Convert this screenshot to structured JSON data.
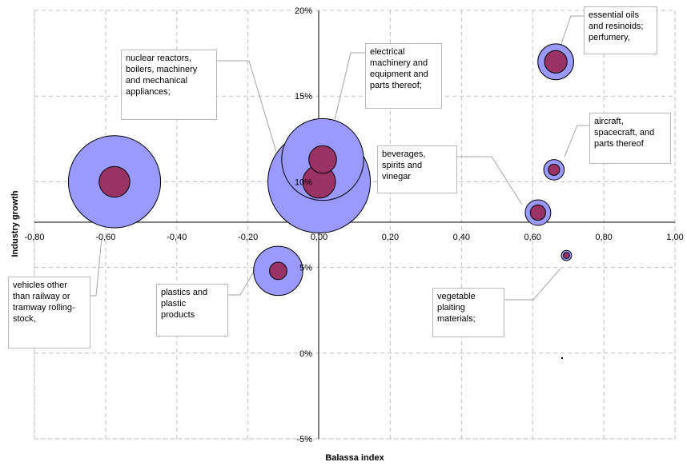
{
  "chart_data": {
    "type": "bubble",
    "xlabel": "Balassa index",
    "ylabel": "Industry growth",
    "xlim": [
      -0.8,
      1.0
    ],
    "x_ticks": [
      -0.8,
      -0.6,
      -0.4,
      -0.2,
      0.0,
      0.2,
      0.4,
      0.6,
      0.8,
      1.0
    ],
    "x_tick_labels": [
      "-0,80",
      "-0,60",
      "-0,40",
      "-0,20",
      "0,00",
      "0,20",
      "0,40",
      "0,60",
      "0,80",
      "1,00"
    ],
    "y_tick_labels": [
      "20%",
      "15%",
      "10%",
      "5%",
      "0%",
      "-5%"
    ],
    "grid": true,
    "colors": {
      "outer": "#9999ff",
      "inner": "#993366",
      "gridline": "#c0c0c0",
      "axis": "#000000"
    },
    "points": [
      {
        "label": "essential oils and resinoids; perfumery,",
        "x": 0.665,
        "y": 17.0,
        "outer_size": 0.35,
        "inner_size": 0.22
      },
      {
        "label": "electrical machinery and equipment and parts thereof;",
        "x": 0.01,
        "y": 11.3,
        "outer_size": 0.8,
        "inner_size": 0.27
      },
      {
        "label": "nuclear reactors, boilers, machinery and mechanical appliances;",
        "x": 0.0,
        "y": 10.0,
        "outer_size": 1.0,
        "inner_size": 0.32
      },
      {
        "label": "aircraft, spacecraft, and parts thereof",
        "x": 0.66,
        "y": 10.7,
        "outer_size": 0.2,
        "inner_size": 0.11
      },
      {
        "label": "beverages, spirits and vinegar",
        "x": 0.615,
        "y": 8.2,
        "outer_size": 0.25,
        "inner_size": 0.15
      },
      {
        "label": "vehicles other than railway or tramway rolling-stock,",
        "x": -0.575,
        "y": 10.0,
        "outer_size": 0.9,
        "inner_size": 0.3
      },
      {
        "label": "plastics and plastic products",
        "x": -0.115,
        "y": 4.8,
        "outer_size": 0.48,
        "inner_size": 0.17
      },
      {
        "label": "vegetable plaiting materials;",
        "x": 0.695,
        "y": 5.7,
        "outer_size": 0.1,
        "inner_size": 0.06
      }
    ],
    "annotations": [
      {
        "id": "essential-oils",
        "text": "essential oils\nand resinoids;\nperfumery,"
      },
      {
        "id": "electrical",
        "text": "electrical\nmachinery and\nequipment and\nparts thereof;"
      },
      {
        "id": "nuclear",
        "text": "nuclear reactors,\nboilers, machinery\nand mechanical\nappliances;"
      },
      {
        "id": "aircraft",
        "text": "aircraft,\nspacecraft, and\nparts thereof"
      },
      {
        "id": "beverages",
        "text": "beverages,\nspirits and\nvinegar"
      },
      {
        "id": "vehicles",
        "text": "vehicles other\nthan railway or\ntramway rolling-\nstock,"
      },
      {
        "id": "plastics",
        "text": "plastics and\nplastic\nproducts"
      },
      {
        "id": "vegetable",
        "text": "vegetable\nplaiting\nmaterials;"
      }
    ]
  }
}
